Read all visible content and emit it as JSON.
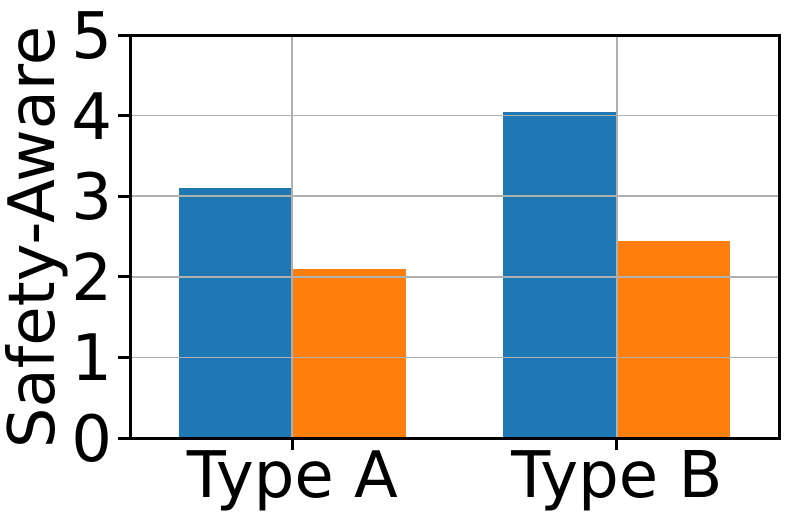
{
  "figure": {
    "background": "#ffffff",
    "axis_color": "#000000",
    "text_color": "#000000"
  },
  "chart_data": {
    "type": "bar",
    "title": "",
    "xlabel": "",
    "ylabel": "Safety-Aware",
    "categories": [
      "Type A",
      "Type B"
    ],
    "x": [
      0,
      1
    ],
    "xlim": [
      -0.5,
      1.5
    ],
    "ylim": [
      0,
      5
    ],
    "yticks": [
      0,
      1,
      2,
      3,
      4,
      5
    ],
    "bar_width": 0.35,
    "grid": true,
    "grid_color": "#b0b0b0",
    "grid_above_bars": true,
    "legend": "none",
    "series": [
      {
        "name": "series-1",
        "color": "#1f77b4",
        "values": [
          3.1,
          4.05
        ]
      },
      {
        "name": "series-2",
        "color": "#ff7f0e",
        "values": [
          2.1,
          2.45
        ]
      }
    ]
  }
}
